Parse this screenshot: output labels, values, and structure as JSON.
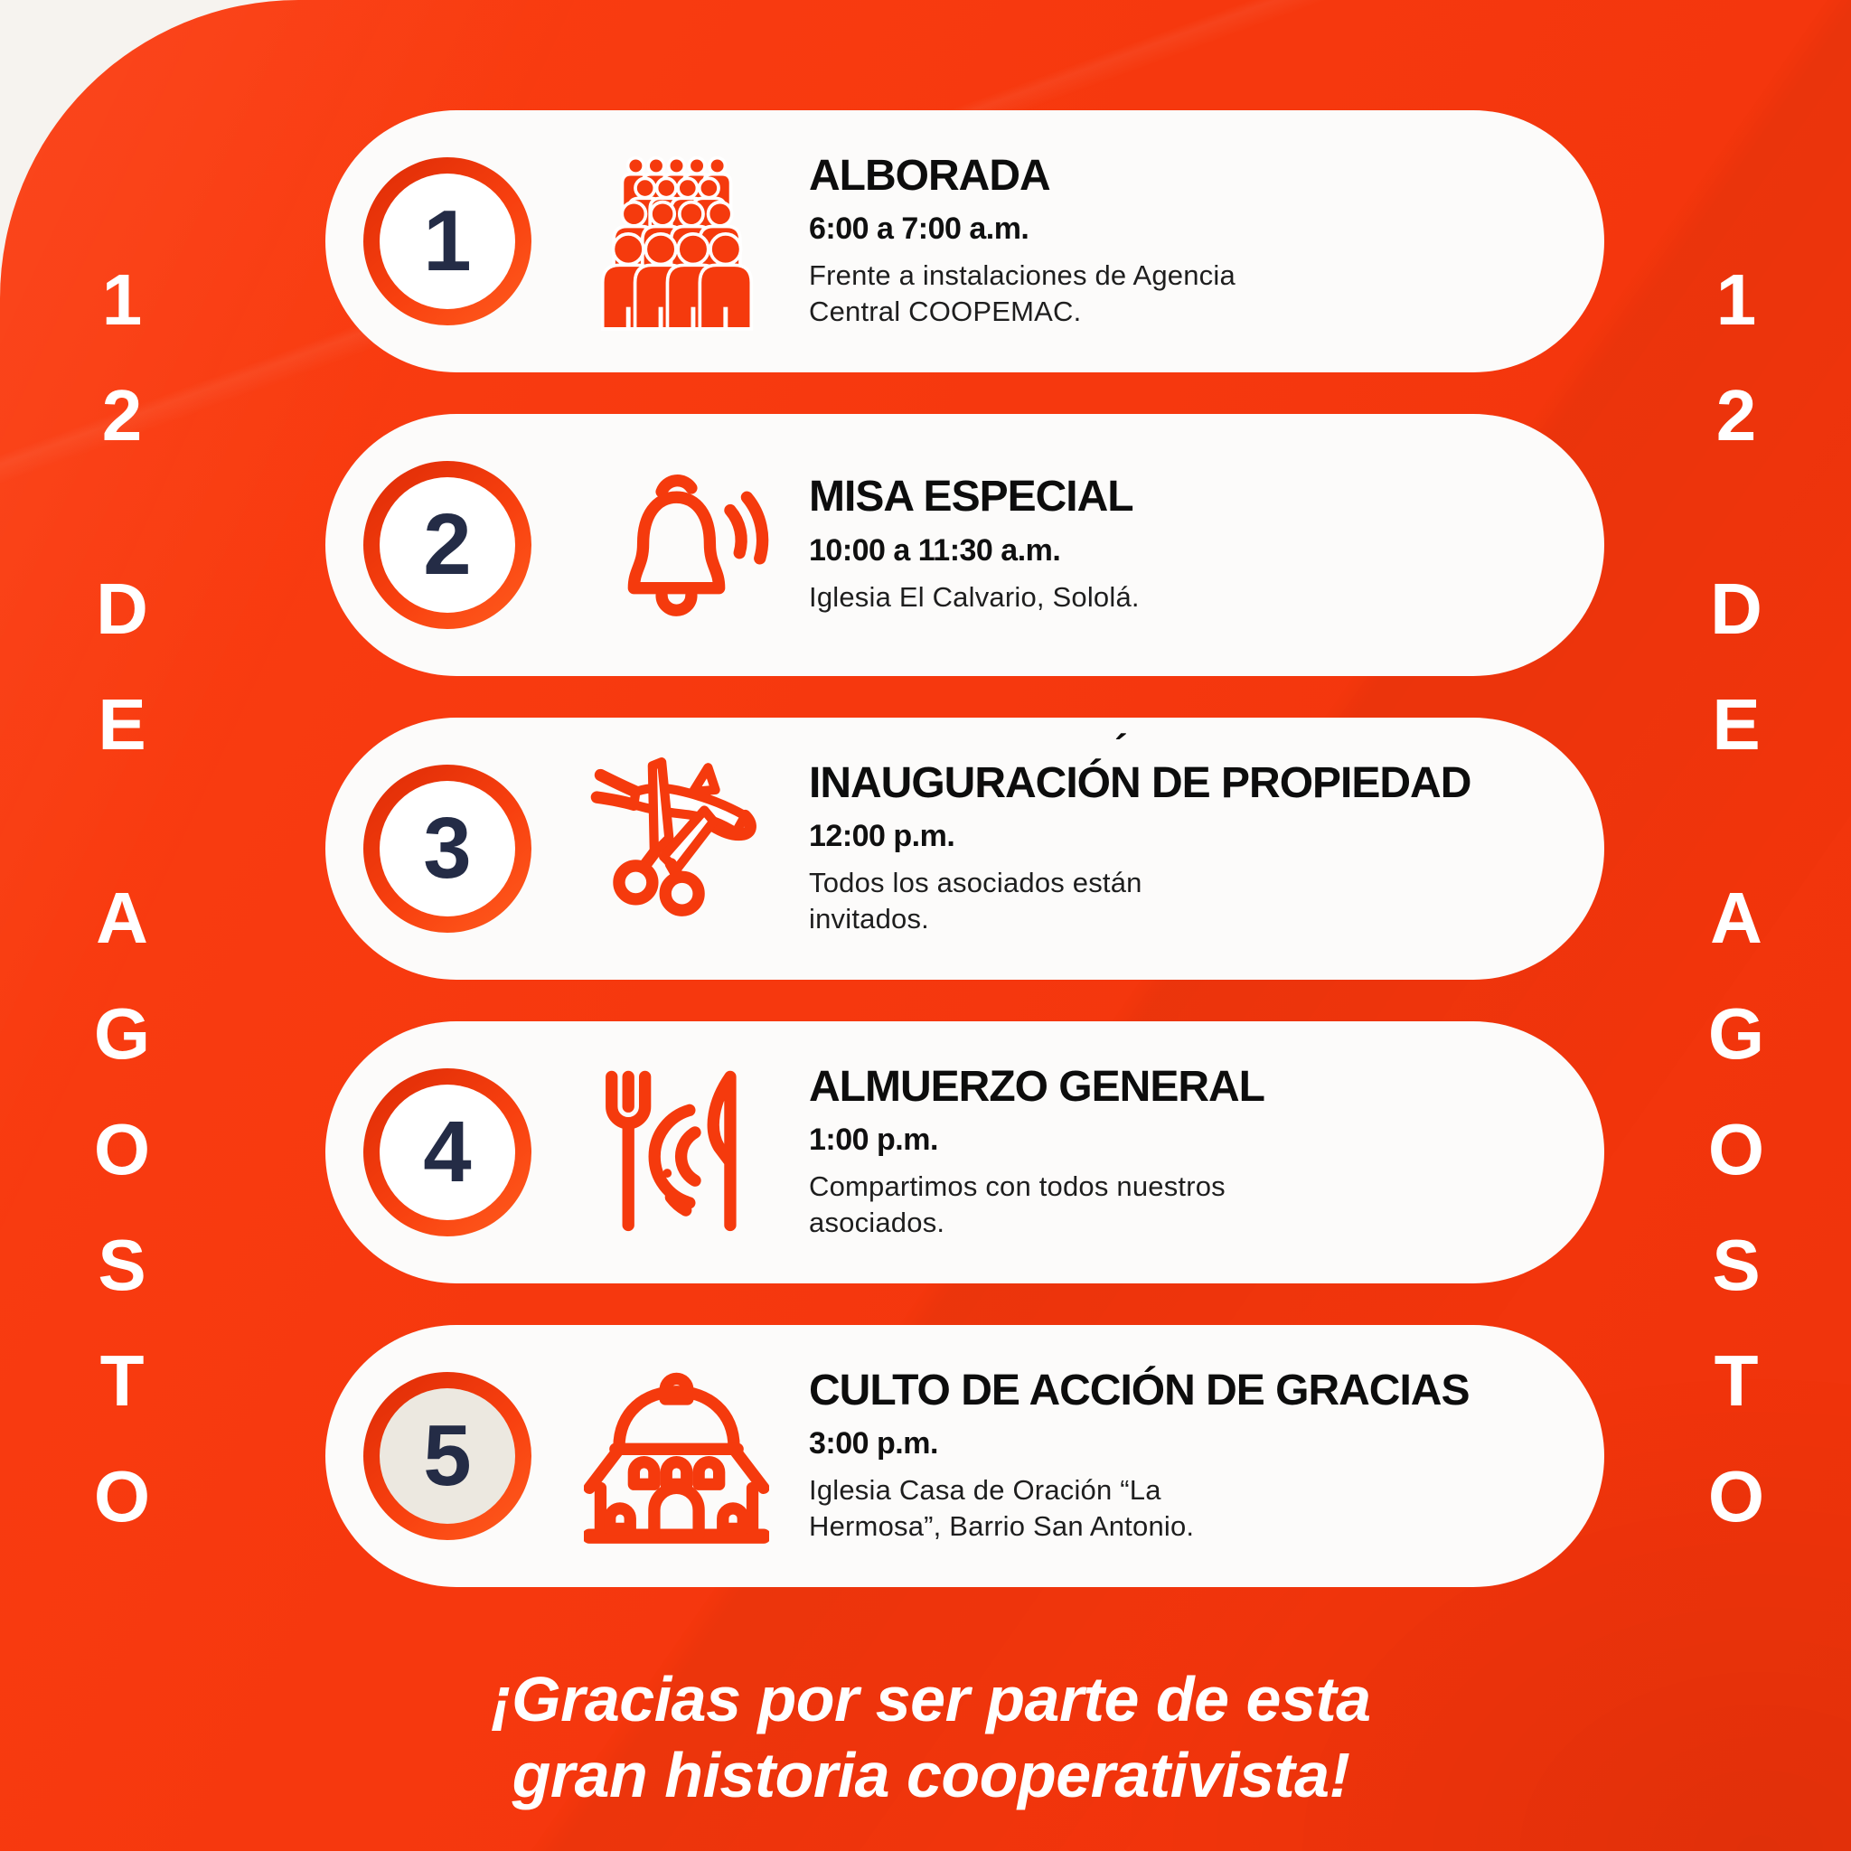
{
  "poster": {
    "side_date_left": "12 DE AGOSTO",
    "side_date_right": "12 DE AGOSTO",
    "side_date_groups": [
      [
        "1",
        "2"
      ],
      [
        "D",
        "E"
      ],
      [
        "A",
        "G",
        "O",
        "S",
        "T",
        "O"
      ]
    ],
    "events": [
      {
        "number": "1",
        "icon": "crowd-icon",
        "title": "ALBORADA",
        "time": "6:00 a 7:00 a.m.",
        "description": "Frente a instalaciones de Agencia\nCentral COOPEMAC.",
        "circle_fill": "#ffffff"
      },
      {
        "number": "2",
        "icon": "bell-icon",
        "title": "MISA ESPECIAL",
        "time": "10:00 a 11:30 a.m.",
        "description": "Iglesia El Calvario, Sololá.",
        "circle_fill": "#ffffff"
      },
      {
        "number": "3",
        "icon": "ribbon-cutting-icon",
        "title": "INAUGURACIÓN DE PROPIEDAD",
        "title_accent": "´",
        "time": "12:00 p.m.",
        "description": "Todos los asociados están\ninvitados.",
        "circle_fill": "#ffffff"
      },
      {
        "number": "4",
        "icon": "meal-icon",
        "title": "ALMUERZO GENERAL",
        "time": "1:00 p.m.",
        "description": "Compartimos con todos nuestros\nasociados.",
        "circle_fill": "#ffffff"
      },
      {
        "number": "5",
        "icon": "church-icon",
        "title": "CULTO DE ACCIÓN DE GRACIAS",
        "time": "3:00 p.m.",
        "description": "Iglesia Casa de Oración “La\nHermosa”, Barrio San Antonio.",
        "circle_fill": "#ece8e0"
      }
    ],
    "footer_lines": [
      "¡Gracias por ser parte de esta",
      "gran historia cooperativista!"
    ],
    "colors": {
      "background_red": "#f6380e",
      "corner_offwhite": "#f6f3ef",
      "card_background": "#fcfbfa",
      "accent_orange": "#f53a0d",
      "ring_gradient_start": "#dd2b06",
      "ring_gradient_end": "#ff5c1e",
      "number_navy": "#242c46",
      "title_black": "#0d0d0d",
      "text_dark": "#1e1e1e",
      "circle5_beige": "#ece8e0",
      "white": "#ffffff"
    }
  }
}
